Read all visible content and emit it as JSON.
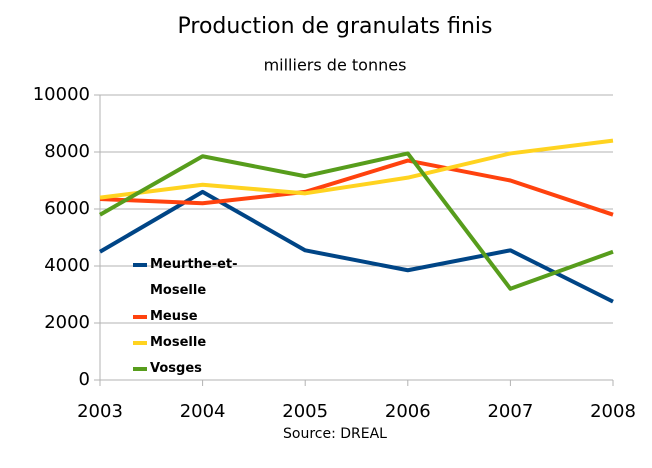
{
  "chart_data": {
    "type": "line",
    "title": "Production de granulats finis",
    "subtitle": "milliers de tonnes",
    "source": "Source: DREAL",
    "x": [
      2003,
      2004,
      2005,
      2006,
      2007,
      2008
    ],
    "xlim": [
      2003,
      2008
    ],
    "xticks": [
      2003,
      2004,
      2005,
      2006,
      2007,
      2008
    ],
    "ylim": [
      0,
      10000
    ],
    "yticks": [
      0,
      2000,
      4000,
      6000,
      8000,
      10000
    ],
    "grid": true,
    "legend": "left",
    "series": [
      {
        "name": "Meurthe-et-Moselle",
        "color": "#004586",
        "values": [
          4500,
          6600,
          4550,
          3850,
          4550,
          2750
        ]
      },
      {
        "name": "Meuse",
        "color": "#ff420e",
        "values": [
          6350,
          6200,
          6600,
          7700,
          7000,
          5800
        ]
      },
      {
        "name": "Moselle",
        "color": "#ffd320",
        "values": [
          6400,
          6850,
          6550,
          7100,
          7950,
          8400
        ]
      },
      {
        "name": "Vosges",
        "color": "#579d1c",
        "values": [
          5800,
          7850,
          7150,
          7950,
          3200,
          4500
        ]
      }
    ]
  }
}
